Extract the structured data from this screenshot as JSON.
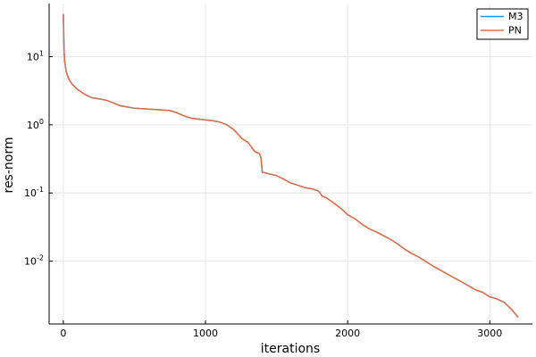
{
  "chart_data": {
    "type": "line",
    "title": "",
    "xlabel": "iterations",
    "ylabel": "res-norm",
    "xlim": [
      -100,
      3300
    ],
    "ylim": [
      0.0012,
      60
    ],
    "yscale": "log",
    "grid": true,
    "legend_position": "top-right",
    "x_ticks": [
      {
        "value": 0,
        "label": "0"
      },
      {
        "value": 1000,
        "label": "1000"
      },
      {
        "value": 2000,
        "label": "2000"
      },
      {
        "value": 3000,
        "label": "3000"
      }
    ],
    "y_ticks": [
      {
        "value": 10,
        "base": "10",
        "exp": "1"
      },
      {
        "value": 1,
        "base": "10",
        "exp": "0"
      },
      {
        "value": 0.1,
        "base": "10",
        "exp": "-1"
      },
      {
        "value": 0.01,
        "base": "10",
        "exp": "-2"
      }
    ],
    "x": [
      0,
      5,
      10,
      20,
      40,
      60,
      80,
      100,
      150,
      200,
      250,
      300,
      350,
      400,
      500,
      600,
      700,
      750,
      800,
      850,
      900,
      1000,
      1050,
      1100,
      1150,
      1200,
      1250,
      1270,
      1300,
      1330,
      1350,
      1380,
      1390,
      1400,
      1410,
      1450,
      1500,
      1550,
      1600,
      1650,
      1700,
      1750,
      1780,
      1800,
      1820,
      1850,
      1900,
      1950,
      2000,
      2050,
      2100,
      2150,
      2200,
      2300,
      2350,
      2400,
      2450,
      2500,
      2600,
      2700,
      2800,
      2900,
      2950,
      3000,
      3050,
      3100,
      3150,
      3200
    ],
    "series": [
      {
        "name": "M3",
        "color": "#009AFA",
        "values": [
          42,
          12,
          8.5,
          6.0,
          4.6,
          4.0,
          3.6,
          3.3,
          2.8,
          2.5,
          2.4,
          2.3,
          2.1,
          1.9,
          1.75,
          1.7,
          1.65,
          1.62,
          1.5,
          1.35,
          1.25,
          1.18,
          1.15,
          1.1,
          1.0,
          0.85,
          0.65,
          0.6,
          0.55,
          0.45,
          0.4,
          0.38,
          0.33,
          0.2,
          0.2,
          0.19,
          0.18,
          0.16,
          0.14,
          0.13,
          0.12,
          0.115,
          0.11,
          0.105,
          0.09,
          0.085,
          0.072,
          0.06,
          0.048,
          0.042,
          0.035,
          0.03,
          0.027,
          0.021,
          0.018,
          0.015,
          0.013,
          0.0115,
          0.0085,
          0.0065,
          0.005,
          0.0038,
          0.0035,
          0.003,
          0.0028,
          0.0025,
          0.002,
          0.0015
        ]
      },
      {
        "name": "PN",
        "color": "#E26F46",
        "values": [
          42,
          12,
          8.5,
          6.0,
          4.6,
          4.0,
          3.6,
          3.3,
          2.8,
          2.5,
          2.4,
          2.3,
          2.1,
          1.9,
          1.75,
          1.7,
          1.65,
          1.62,
          1.5,
          1.35,
          1.25,
          1.18,
          1.15,
          1.1,
          1.0,
          0.85,
          0.65,
          0.6,
          0.55,
          0.45,
          0.4,
          0.38,
          0.33,
          0.2,
          0.2,
          0.19,
          0.18,
          0.16,
          0.14,
          0.13,
          0.12,
          0.115,
          0.11,
          0.105,
          0.09,
          0.085,
          0.072,
          0.06,
          0.048,
          0.042,
          0.035,
          0.03,
          0.027,
          0.021,
          0.018,
          0.015,
          0.013,
          0.0115,
          0.0085,
          0.0065,
          0.005,
          0.0038,
          0.0035,
          0.003,
          0.0028,
          0.0025,
          0.002,
          0.0015
        ]
      }
    ]
  }
}
